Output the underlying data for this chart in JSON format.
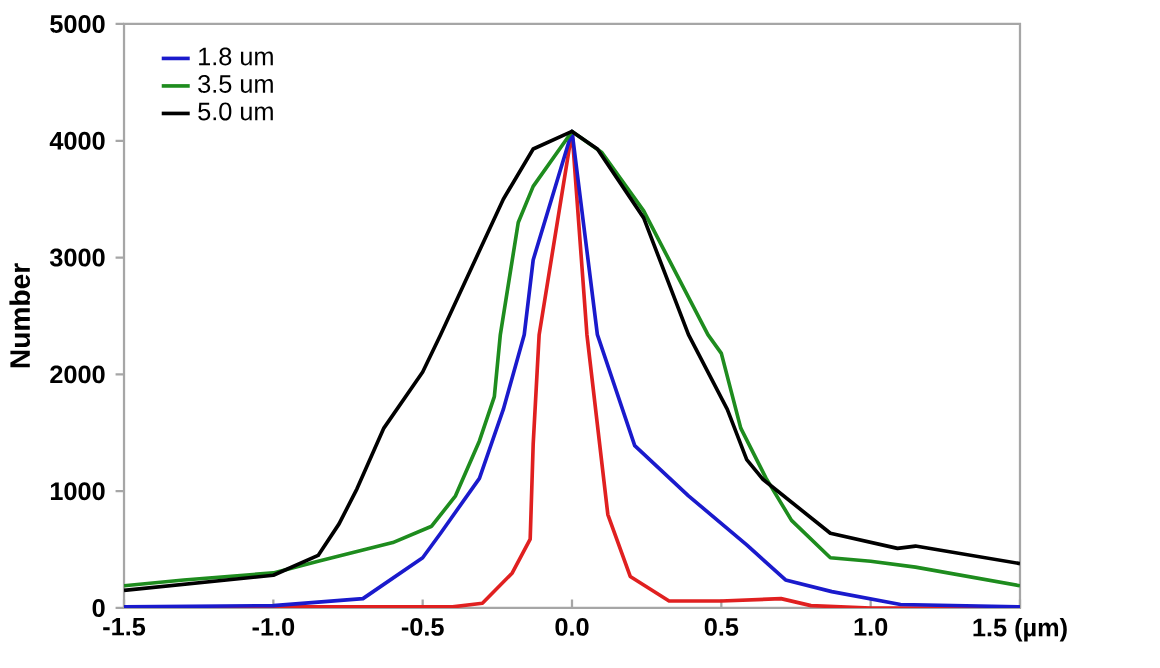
{
  "chart_data": {
    "type": "line",
    "ylabel": "Number",
    "xlim": [
      -1.5,
      1.5
    ],
    "ylim": [
      0,
      5000
    ],
    "xticks": [
      -1.5,
      {
        "value": -1,
        "label": "-1.0"
      },
      -0.5,
      {
        "value": 0,
        "label": "0.0"
      },
      0.5,
      {
        "value": 1,
        "label": "1.0"
      },
      {
        "value": 1.5,
        "label": "1.5 (µm)"
      }
    ],
    "yticks": [
      0,
      1000,
      2000,
      3000,
      4000,
      5000
    ],
    "grid": false,
    "legend": "top left",
    "marker": "none",
    "line_style": "solid",
    "series": [
      {
        "color": "#e02020",
        "x": [
          -1.5,
          -1.0,
          -0.5,
          -0.4,
          -0.3,
          -0.2,
          -0.14,
          -0.13,
          -0.11,
          0.0,
          0.05,
          0.12,
          0.195,
          0.325,
          0.5,
          0.7,
          0.8,
          1.0,
          1.5
        ],
        "values": [
          10,
          10,
          10,
          10,
          40,
          300,
          590,
          1400,
          2340,
          4080,
          2340,
          800,
          270,
          60,
          60,
          80,
          20,
          0,
          0
        ]
      },
      {
        "name": "1.8 um",
        "color": "#1a1acc",
        "x": [
          -1.5,
          -1.0,
          -0.7,
          -0.5,
          -0.44,
          -0.31,
          -0.23,
          -0.16,
          -0.13,
          0.0,
          0.085,
          0.21,
          0.39,
          0.585,
          0.715,
          0.87,
          1.1,
          1.5
        ],
        "values": [
          10,
          20,
          80,
          430,
          640,
          1110,
          1700,
          2340,
          2980,
          4080,
          2340,
          1390,
          960,
          540,
          240,
          140,
          30,
          10
        ]
      },
      {
        "name": "3.5 um",
        "color": "#1e8c1e",
        "x": [
          -1.5,
          -1.3,
          -1.0,
          -0.85,
          -0.6,
          -0.47,
          -0.39,
          -0.31,
          -0.26,
          -0.24,
          -0.18,
          -0.13,
          0.0,
          0.1,
          0.24,
          0.455,
          0.5,
          0.565,
          0.65,
          0.735,
          0.865,
          1.0,
          1.15,
          1.5
        ],
        "values": [
          190,
          240,
          300,
          400,
          560,
          700,
          960,
          1430,
          1810,
          2340,
          3300,
          3610,
          4080,
          3900,
          3400,
          2340,
          2180,
          1540,
          1110,
          750,
          430,
          400,
          350,
          190
        ]
      },
      {
        "name": "5.0 um",
        "color": "#000000",
        "x": [
          -1.5,
          -1.0,
          -0.85,
          -0.78,
          -0.72,
          -0.63,
          -0.5,
          -0.44,
          -0.23,
          -0.13,
          0.0,
          0.085,
          0.24,
          0.39,
          0.52,
          0.585,
          0.64,
          0.865,
          1.09,
          1.15,
          1.5
        ],
        "values": [
          150,
          280,
          450,
          720,
          1020,
          1540,
          2020,
          2340,
          3500,
          3930,
          4080,
          3930,
          3340,
          2340,
          1700,
          1270,
          1100,
          640,
          510,
          530,
          380
        ]
      }
    ]
  }
}
